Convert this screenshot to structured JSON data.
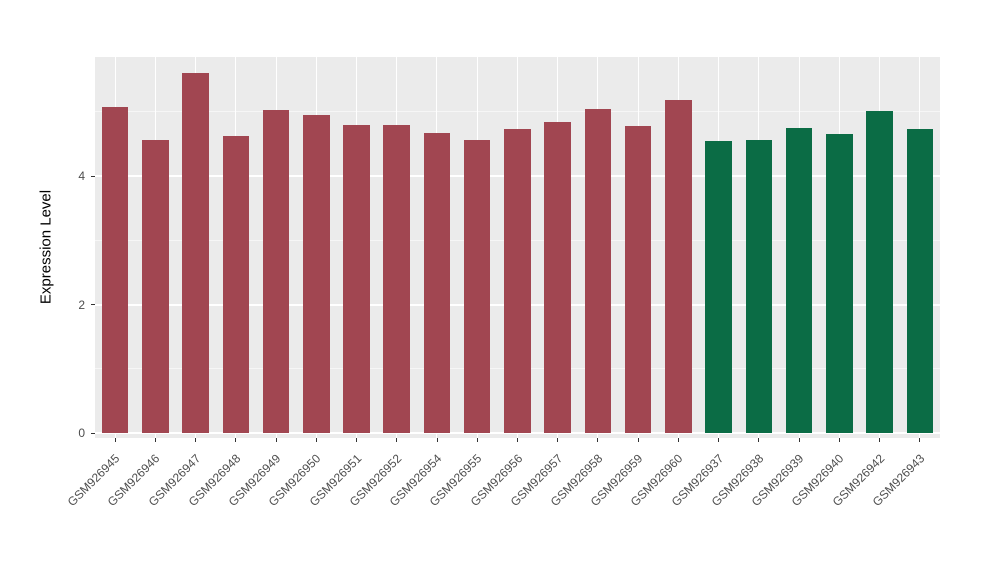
{
  "chart_data": {
    "type": "bar",
    "title": "",
    "xlabel": "",
    "ylabel": "Expression Level",
    "ylim": [
      0,
      5.85
    ],
    "yticks": [
      0,
      2,
      4
    ],
    "ytick_labels": [
      "0",
      "2",
      "4"
    ],
    "yticks_minor": [
      1,
      3,
      5
    ],
    "grid": "on",
    "legend": "none",
    "categories": [
      "GSM926945",
      "GSM926946",
      "GSM926947",
      "GSM926948",
      "GSM926949",
      "GSM926950",
      "GSM926951",
      "GSM926952",
      "GSM926954",
      "GSM926955",
      "GSM926956",
      "GSM926957",
      "GSM926958",
      "GSM926959",
      "GSM926960",
      "GSM926937",
      "GSM926938",
      "GSM926939",
      "GSM926940",
      "GSM926942",
      "GSM926943"
    ],
    "values": [
      5.07,
      4.56,
      5.6,
      4.62,
      5.03,
      4.95,
      4.79,
      4.79,
      4.67,
      4.56,
      4.73,
      4.84,
      5.04,
      4.78,
      5.18,
      4.54,
      4.56,
      4.75,
      4.65,
      5.01,
      4.73
    ],
    "bar_groups": [
      "g1",
      "g1",
      "g1",
      "g1",
      "g1",
      "g1",
      "g1",
      "g1",
      "g1",
      "g1",
      "g1",
      "g1",
      "g1",
      "g1",
      "g1",
      "g2",
      "g2",
      "g2",
      "g2",
      "g2",
      "g2"
    ],
    "group_colors": {
      "g1": "#A14651",
      "g2": "#0B6C45"
    },
    "panel_background": "#EBEBEB",
    "gridline_color": "#FFFFFF",
    "tick_text_color": "#4D4D4D",
    "axis_title_color": "#000000"
  }
}
